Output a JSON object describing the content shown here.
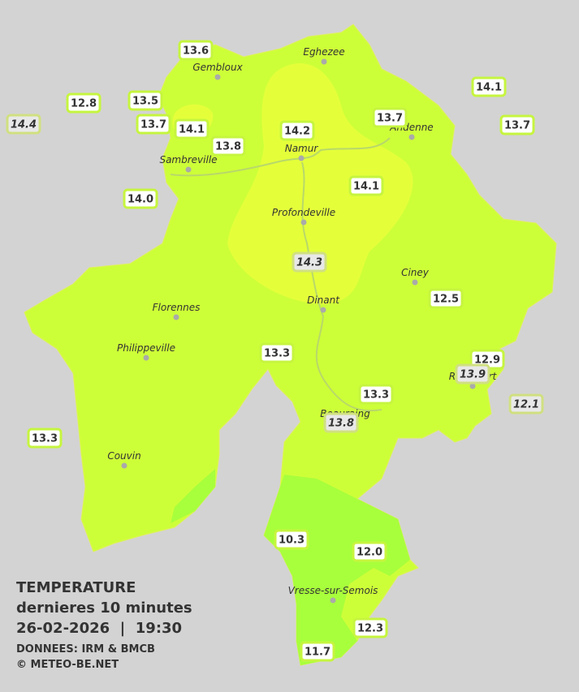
{
  "legend": {
    "title": "TEMPERATURE",
    "subtitle": "dernieres 10 minutes",
    "datetime": "26-02-2026  |  19:30",
    "source": "DONNEES: IRM & BMCB",
    "copyright": "© METEO-BE.NET"
  },
  "cities": [
    "Eghezee",
    "Gembloux",
    "Andenne",
    "Namur",
    "Sambreville",
    "Profondeville",
    "Ciney",
    "Dinant",
    "Florennes",
    "Philippeville",
    "Rochefort",
    "Beauraing",
    "Couvin",
    "Vresse-sur-Semois"
  ],
  "stations": [
    {
      "value": "13.6"
    },
    {
      "value": "12.8"
    },
    {
      "value": "13.5"
    },
    {
      "value": "14.4",
      "italic": true
    },
    {
      "value": "13.7"
    },
    {
      "value": "14.1"
    },
    {
      "value": "13.8"
    },
    {
      "value": "14.2"
    },
    {
      "value": "13.7"
    },
    {
      "value": "14.1"
    },
    {
      "value": "13.7"
    },
    {
      "value": "14.0"
    },
    {
      "value": "14.1"
    },
    {
      "value": "14.3",
      "italic": true
    },
    {
      "value": "12.5"
    },
    {
      "value": "13.3"
    },
    {
      "value": "12.9"
    },
    {
      "value": "13.9",
      "italic": true
    },
    {
      "value": "12.1",
      "italic": true
    },
    {
      "value": "13.3"
    },
    {
      "value": "13.8",
      "italic": true
    },
    {
      "value": "13.3"
    },
    {
      "value": "10.3"
    },
    {
      "value": "12.0"
    },
    {
      "value": "12.3"
    },
    {
      "value": "11.7"
    }
  ]
}
